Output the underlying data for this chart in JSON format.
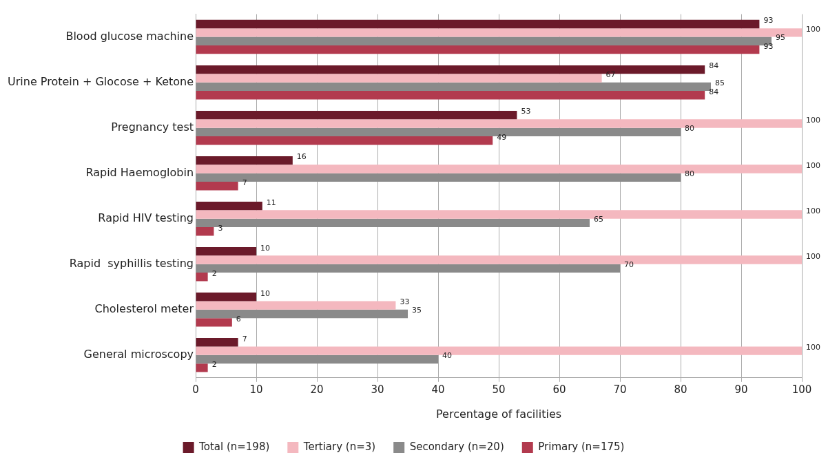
{
  "chart_data": {
    "type": "bar",
    "orientation": "horizontal",
    "xlabel": "Percentage of facilities",
    "categories": [
      "Blood glucose machine",
      "Urine Protein + Glocose + Ketone",
      "Pregnancy test",
      "Rapid Haemoglobin",
      "Rapid HIV testing",
      "Rapid  syphillis testing",
      "Cholesterol meter",
      "General microscopy"
    ],
    "series": [
      {
        "name": "Total (n=198)",
        "color": "#6b1a2a",
        "values": [
          93,
          84,
          53,
          16,
          11,
          10,
          10,
          7
        ]
      },
      {
        "name": "Tertiary (n=3)",
        "color": "#f4b8bf",
        "values": [
          100,
          67,
          100,
          100,
          100,
          100,
          33,
          100
        ]
      },
      {
        "name": "Secondary (n=20)",
        "color": "#8a8a8a",
        "values": [
          95,
          85,
          80,
          80,
          65,
          70,
          35,
          40
        ]
      },
      {
        "name": "Primary (n=175)",
        "color": "#b23a4e",
        "values": [
          93,
          84,
          49,
          7,
          3,
          2,
          6,
          2
        ]
      }
    ],
    "xlim": [
      0,
      100
    ],
    "xticks": [
      0,
      10,
      20,
      30,
      40,
      50,
      60,
      70,
      80,
      90,
      100
    ],
    "grid": "x",
    "legend": "bottom",
    "data_labels": true
  }
}
